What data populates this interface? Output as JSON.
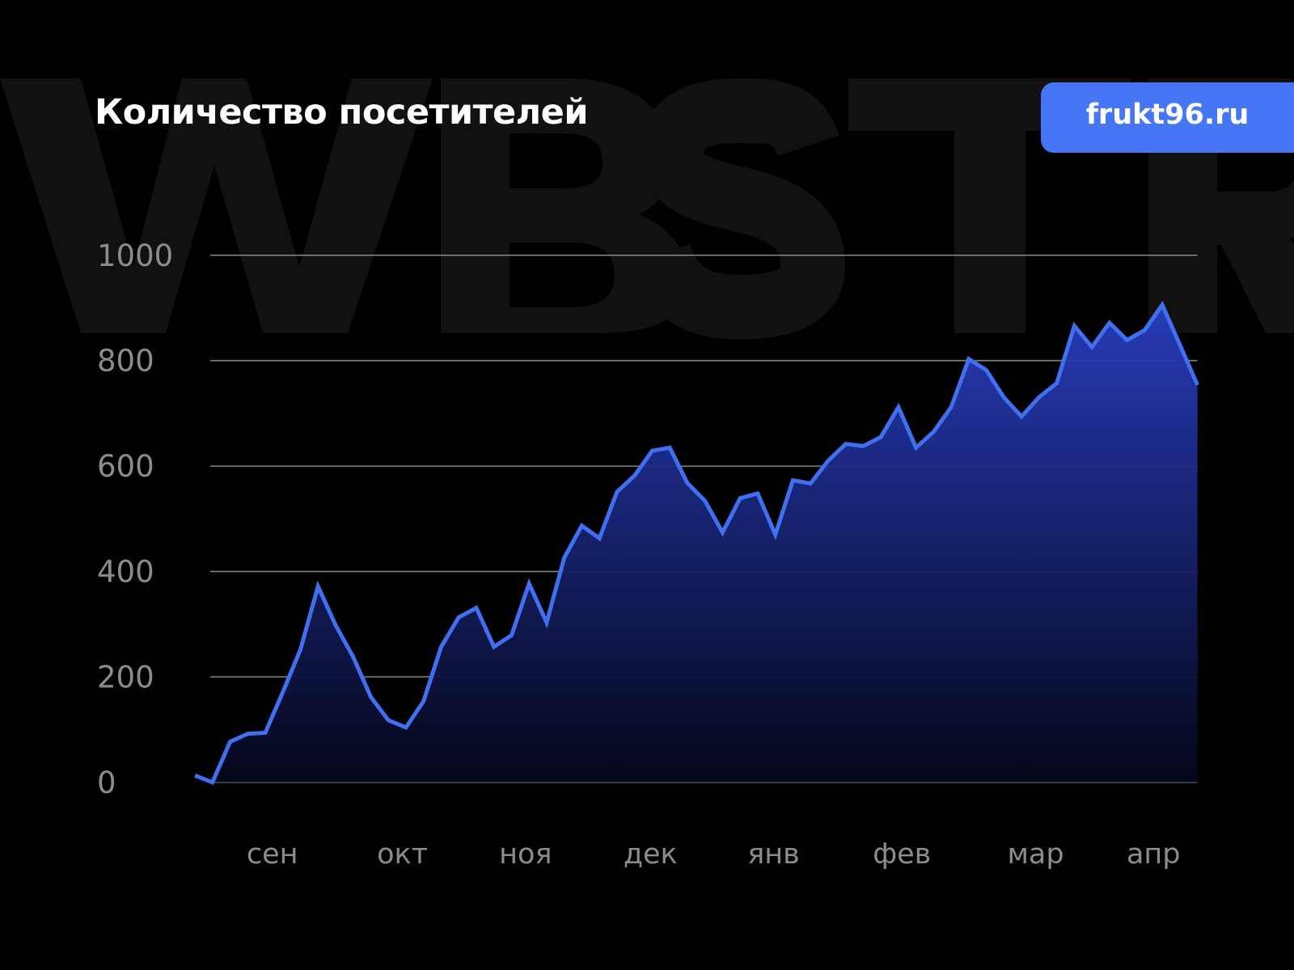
{
  "title": "Количество посетителей",
  "badge": {
    "label": "frukt96.ru",
    "color": "#4676f5"
  },
  "watermark": "WBSTR",
  "colors": {
    "background": "#000000",
    "line": "#4070f0",
    "fill_top": "#2e46d6",
    "fill_bottom": "#05071a",
    "grid": "#8a8a8a",
    "tick_text": "#8c8c8c",
    "watermark": "#111111"
  },
  "chart_data": {
    "type": "area",
    "title": "Количество посетителей",
    "xlabel": "",
    "ylabel": "",
    "ylim": [
      0,
      1000
    ],
    "grid": true,
    "y_ticks": [
      "0",
      "200",
      "400",
      "600",
      "800",
      "1000"
    ],
    "x_tick_labels": [
      "сен",
      "окт",
      "ноя",
      "дек",
      "янв",
      "фев",
      "мар",
      "апр"
    ],
    "values": [
      13,
      0,
      77,
      92,
      94,
      171,
      252,
      372,
      298,
      238,
      162,
      118,
      104,
      154,
      257,
      313,
      331,
      257,
      279,
      377,
      303,
      426,
      487,
      463,
      551,
      582,
      629,
      635,
      568,
      534,
      474,
      539,
      548,
      470,
      573,
      567,
      610,
      642,
      638,
      655,
      712,
      635,
      665,
      712,
      803,
      782,
      730,
      694,
      731,
      757,
      866,
      826,
      872,
      839,
      858,
      906,
      830,
      754
    ]
  }
}
